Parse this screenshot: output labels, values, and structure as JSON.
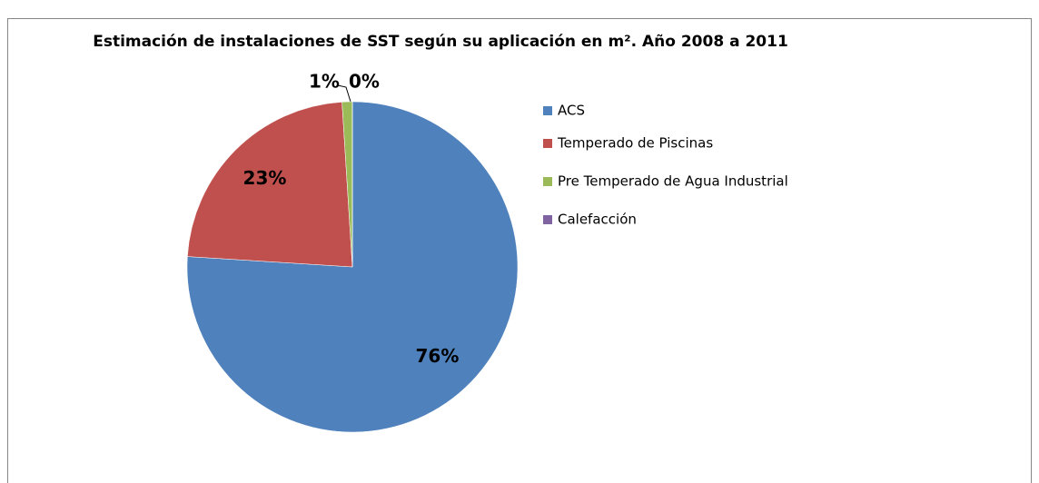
{
  "chart_data": {
    "type": "pie",
    "title": "Estimación de instalaciones de SST según su aplicación en m². Año 2008 a 2011",
    "categories": [
      "ACS",
      "Temperado de Piscinas",
      "Pre Temperado de Agua Industrial",
      "Calefacción"
    ],
    "values": [
      76,
      23,
      1,
      0
    ],
    "value_labels": [
      "76%",
      "23%",
      "1%",
      "0%"
    ],
    "colors": [
      "#4f81bd",
      "#c0504d",
      "#9bbb59",
      "#8064a2"
    ],
    "legend": "right"
  }
}
